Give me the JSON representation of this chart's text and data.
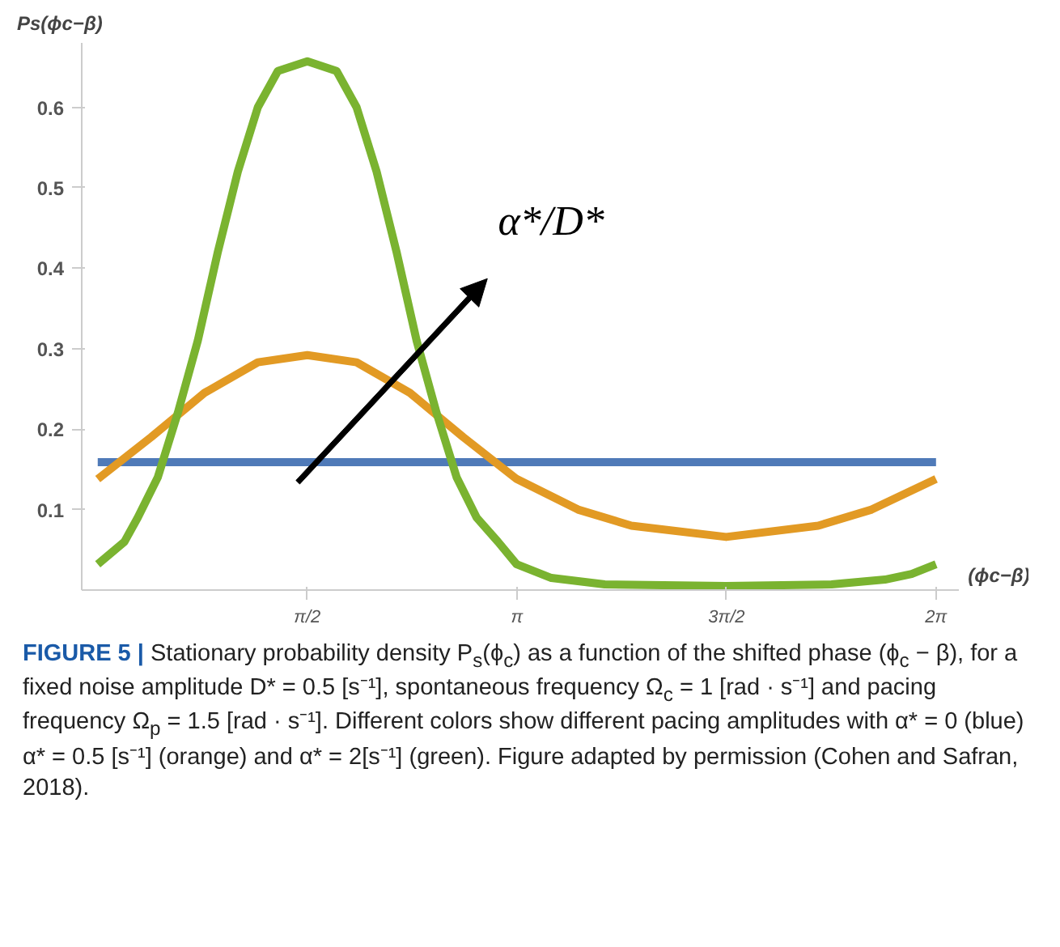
{
  "chart_data": {
    "type": "line",
    "ylabel": "Ps(ϕc−β)",
    "xlabel": "(ϕc−β)",
    "xlim": [
      -0.12,
      6.45
    ],
    "ylim": [
      0,
      0.68
    ],
    "xticks": [
      {
        "value": 1.5708,
        "label": "π/2"
      },
      {
        "value": 3.1416,
        "label": "π"
      },
      {
        "value": 4.7124,
        "label": "3π/2"
      },
      {
        "value": 6.2832,
        "label": "2π"
      }
    ],
    "yticks": [
      0.1,
      0.2,
      0.3,
      0.4,
      0.5,
      0.6
    ],
    "grid": false,
    "line_style": "solid",
    "marker": "none",
    "series": [
      {
        "color": "#4f7ab8",
        "x": [
          0,
          6.283
        ],
        "values": [
          0.159,
          0.159
        ]
      },
      {
        "color": "#e29a24",
        "x": [
          0,
          0.4,
          0.8,
          1.2,
          1.571,
          1.94,
          2.34,
          2.74,
          3.14,
          3.6,
          4.0,
          4.71,
          5.4,
          5.8,
          6.283
        ],
        "values": [
          0.138,
          0.19,
          0.245,
          0.283,
          0.292,
          0.283,
          0.245,
          0.19,
          0.138,
          0.1,
          0.08,
          0.066,
          0.08,
          0.1,
          0.138
        ]
      },
      {
        "color": "#7ab330",
        "x": [
          0,
          0.2,
          0.3,
          0.45,
          0.6,
          0.75,
          0.9,
          1.05,
          1.2,
          1.35,
          1.571,
          1.79,
          1.94,
          2.09,
          2.24,
          2.39,
          2.54,
          2.69,
          2.84,
          3.0,
          3.14,
          3.4,
          3.8,
          4.71,
          5.5,
          5.9,
          6.1,
          6.283
        ],
        "values": [
          0.032,
          0.06,
          0.09,
          0.14,
          0.22,
          0.31,
          0.42,
          0.52,
          0.6,
          0.645,
          0.657,
          0.645,
          0.6,
          0.52,
          0.42,
          0.31,
          0.22,
          0.14,
          0.09,
          0.06,
          0.032,
          0.015,
          0.007,
          0.005,
          0.007,
          0.013,
          0.02,
          0.032
        ]
      }
    ],
    "annotations": [
      "α*/D*",
      "FIGURE 5 | Stationary probability density P$_{s}$(ϕ$_{c}$) as a function of the shifted phase (ϕ$_{c}$ − β), for a fixed noise amplitude D* = 0.5 [s⁻¹], spontaneous frequency Ω$_{c}$ = 1 [rad · s⁻¹] and pacing frequency Ω$_{p}$ = 1.5 [rad · s⁻¹]. Different colors show different pacing amplitudes with α* = 0 (blue) α* = 0.5 [s⁻¹] (orange) and α* = 2[s⁻¹] (green). Figure adapted by permission (Cohen and Safran, 2018)."
    ]
  }
}
